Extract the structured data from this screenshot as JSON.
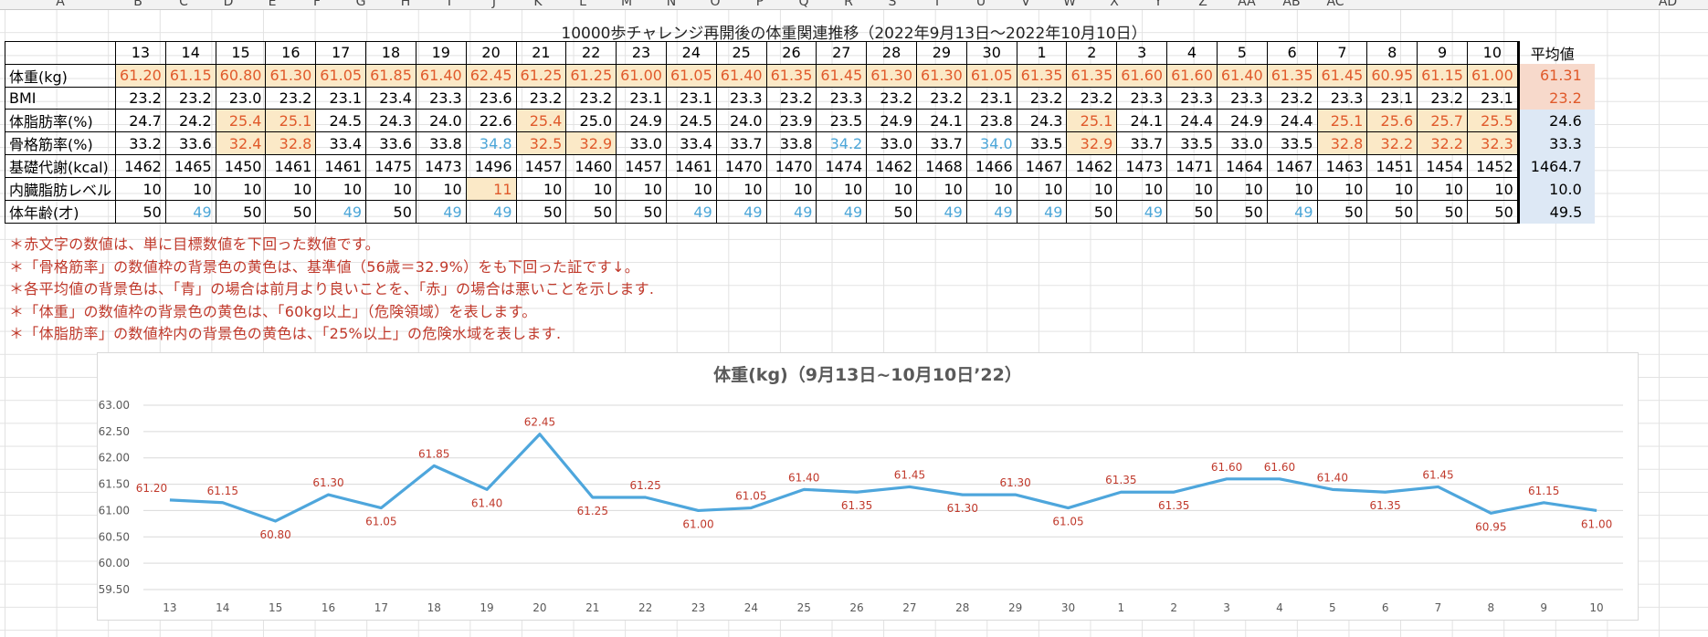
{
  "col_letters": [
    "A",
    "B",
    "C",
    "D",
    "E",
    "F",
    "G",
    "H",
    "I",
    "J",
    "K",
    "L",
    "M",
    "N",
    "O",
    "P",
    "Q",
    "R",
    "S",
    "T",
    "U",
    "V",
    "W",
    "X",
    "Y",
    "Z",
    "AA",
    "AB",
    "AC",
    "AD"
  ],
  "title": "10000歩チャレンジ再開後の体重関連推移（2022年9月13日～2022年10月10日）",
  "dates": [
    "13",
    "14",
    "15",
    "16",
    "17",
    "18",
    "19",
    "20",
    "21",
    "22",
    "23",
    "24",
    "25",
    "26",
    "27",
    "28",
    "29",
    "30",
    "1",
    "2",
    "3",
    "4",
    "5",
    "6",
    "7",
    "8",
    "9",
    "10"
  ],
  "avg_header": "平均値",
  "rows": [
    {
      "label": "体重(kg)",
      "values": [
        "61.20",
        "61.15",
        "60.80",
        "61.30",
        "61.05",
        "61.85",
        "61.40",
        "62.45",
        "61.25",
        "61.25",
        "61.00",
        "61.05",
        "61.40",
        "61.35",
        "61.45",
        "61.30",
        "61.30",
        "61.05",
        "61.35",
        "61.35",
        "61.60",
        "61.60",
        "61.40",
        "61.35",
        "61.45",
        "60.95",
        "61.15",
        "61.00"
      ],
      "avg": "61.31",
      "avg_bg": "red"
    },
    {
      "label": "BMI",
      "values": [
        "23.2",
        "23.2",
        "23.0",
        "23.2",
        "23.1",
        "23.4",
        "23.3",
        "23.6",
        "23.2",
        "23.2",
        "23.1",
        "23.1",
        "23.3",
        "23.2",
        "23.3",
        "23.2",
        "23.2",
        "23.1",
        "23.2",
        "23.2",
        "23.3",
        "23.3",
        "23.3",
        "23.2",
        "23.3",
        "23.1",
        "23.2",
        "23.1"
      ],
      "avg": "23.2",
      "avg_bg": "red"
    },
    {
      "label": "体脂肪率(%)",
      "values": [
        "24.7",
        "24.2",
        "25.4",
        "25.1",
        "24.5",
        "24.3",
        "24.0",
        "22.6",
        "25.4",
        "25.0",
        "24.9",
        "24.5",
        "24.0",
        "23.9",
        "23.5",
        "24.9",
        "24.1",
        "23.8",
        "24.3",
        "25.1",
        "24.1",
        "24.4",
        "24.9",
        "24.4",
        "25.1",
        "25.6",
        "25.7",
        "25.5"
      ],
      "avg": "24.6",
      "avg_bg": "blue"
    },
    {
      "label": "骨格筋率(%)",
      "values": [
        "33.2",
        "33.6",
        "32.4",
        "32.8",
        "33.4",
        "33.6",
        "33.8",
        "34.8",
        "32.5",
        "32.9",
        "33.0",
        "33.4",
        "33.7",
        "33.8",
        "34.2",
        "33.0",
        "33.7",
        "34.0",
        "33.5",
        "32.9",
        "33.7",
        "33.5",
        "33.0",
        "33.5",
        "32.8",
        "32.2",
        "32.2",
        "32.3"
      ],
      "avg": "33.3",
      "avg_bg": "blue"
    },
    {
      "label": "基礎代謝(kcal)",
      "values": [
        "1462",
        "1465",
        "1450",
        "1461",
        "1461",
        "1475",
        "1473",
        "1496",
        "1457",
        "1460",
        "1457",
        "1461",
        "1470",
        "1470",
        "1474",
        "1462",
        "1468",
        "1466",
        "1467",
        "1462",
        "1473",
        "1471",
        "1464",
        "1467",
        "1463",
        "1451",
        "1454",
        "1452"
      ],
      "avg": "1464.7",
      "avg_bg": "blue"
    },
    {
      "label": "内臓脂肪レベル",
      "values": [
        "10",
        "10",
        "10",
        "10",
        "10",
        "10",
        "10",
        "11",
        "10",
        "10",
        "10",
        "10",
        "10",
        "10",
        "10",
        "10",
        "10",
        "10",
        "10",
        "10",
        "10",
        "10",
        "10",
        "10",
        "10",
        "10",
        "10",
        "10"
      ],
      "avg": "10.0",
      "avg_bg": "blue"
    },
    {
      "label": "体年齢(才)",
      "values": [
        "50",
        "49",
        "50",
        "50",
        "49",
        "50",
        "49",
        "49",
        "50",
        "50",
        "50",
        "49",
        "49",
        "49",
        "49",
        "50",
        "49",
        "49",
        "49",
        "50",
        "49",
        "50",
        "50",
        "49",
        "50",
        "50",
        "50",
        "50"
      ],
      "avg": "49.5",
      "avg_bg": "blue"
    }
  ],
  "styles": {
    "row0_text": "red",
    "row0_bg": "yellow",
    "row2_yellow_idx": [
      2,
      3,
      8,
      19,
      24,
      25,
      26,
      27
    ],
    "row3_yellow_idx": [
      2,
      3,
      8,
      9,
      19,
      24,
      25,
      26,
      27
    ],
    "row3_blue_idx": [
      7,
      14,
      17
    ],
    "row5_yellow_idx": [
      7
    ],
    "row6_blue_idx": [
      1,
      4,
      6,
      7,
      11,
      12,
      13,
      14,
      16,
      17,
      18,
      20,
      23
    ]
  },
  "notes": [
    "＊赤文字の数値は、単に目標数値を下回った数値です。",
    "＊「骨格筋率」の数値枠の背景色の黄色は、基準値（56歳＝32.9%）をも下回った証です↓。",
    "＊各平均値の背景色は、「青」の場合は前月より良いことを、「赤」の場合は悪いことを示します.",
    "＊「体重」の数値枠の背景色の黄色は、「60kg以上」（危険領域）を表します。",
    "＊「体脂肪率」の数値枠内の背景色の黄色は、「25%以上」の危険水域を表します."
  ],
  "colors": {
    "line": "#4ea6dc",
    "label": "#c0392b",
    "red_text": "#e05a2b",
    "blue_text": "#4ca6d8",
    "yellow_bg": "#fbe9c7",
    "red_bg": "#f7d9cb",
    "blue_bg": "#dde8f5"
  },
  "chart_data": {
    "type": "line",
    "title": "体重(kg)（9月13日~10月10日’22）",
    "categories": [
      "13",
      "14",
      "15",
      "16",
      "17",
      "18",
      "19",
      "20",
      "21",
      "22",
      "23",
      "24",
      "25",
      "26",
      "27",
      "28",
      "29",
      "30",
      "1",
      "2",
      "3",
      "4",
      "5",
      "6",
      "7",
      "8",
      "9",
      "10"
    ],
    "series": [
      {
        "values": [
          61.2,
          61.15,
          60.8,
          61.3,
          61.05,
          61.85,
          61.4,
          62.45,
          61.25,
          61.25,
          61.0,
          61.05,
          61.4,
          61.35,
          61.45,
          61.3,
          61.3,
          61.05,
          61.35,
          61.35,
          61.6,
          61.6,
          61.4,
          61.35,
          61.45,
          60.95,
          61.15,
          61.0
        ]
      }
    ],
    "data_labels": [
      "61.20",
      "61.15",
      "60.80",
      "61.30",
      "61.05",
      "61.85",
      "61.40",
      "62.45",
      "61.25",
      "61.25",
      "61.00",
      "61.05",
      "61.40",
      "61.35",
      "61.45",
      "61.30",
      "61.30",
      "61.05",
      "61.35",
      "61.35",
      "61.60",
      "61.60",
      "61.40",
      "61.35",
      "61.45",
      "60.95",
      "61.15",
      "61.00"
    ],
    "yticks": [
      "63.00",
      "62.50",
      "62.00",
      "61.50",
      "61.00",
      "60.50",
      "60.00",
      "59.50"
    ],
    "ylim": [
      59.5,
      63.0
    ],
    "grid": true
  }
}
